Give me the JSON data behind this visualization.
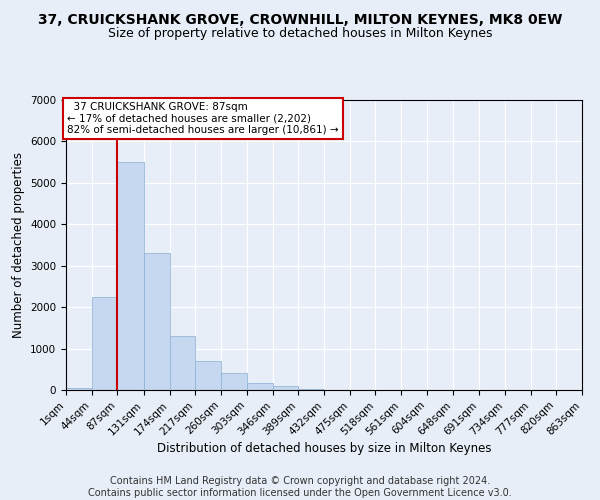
{
  "title": "37, CRUICKSHANK GROVE, CROWNHILL, MILTON KEYNES, MK8 0EW",
  "subtitle": "Size of property relative to detached houses in Milton Keynes",
  "xlabel": "Distribution of detached houses by size in Milton Keynes",
  "ylabel": "Number of detached properties",
  "footer_line1": "Contains HM Land Registry data © Crown copyright and database right 2024.",
  "footer_line2": "Contains public sector information licensed under the Open Government Licence v3.0.",
  "annotation_title": "37 CRUICKSHANK GROVE: 87sqm",
  "annotation_line1": "← 17% of detached houses are smaller (2,202)",
  "annotation_line2": "82% of semi-detached houses are larger (10,861) →",
  "property_size_sqm": 87,
  "bar_edges": [
    1,
    44,
    87,
    131,
    174,
    217,
    260,
    303,
    346,
    389,
    432,
    475,
    518,
    561,
    604,
    648,
    691,
    734,
    777,
    820,
    863
  ],
  "bar_heights": [
    50,
    2250,
    5500,
    3300,
    1300,
    700,
    400,
    175,
    100,
    35,
    8,
    3,
    1,
    0,
    0,
    0,
    0,
    0,
    0,
    0
  ],
  "bar_color": "#c5d8ef",
  "bar_edgecolor": "#8ab0d4",
  "vline_color": "#cc0000",
  "vline_x": 87,
  "annotation_box_edgecolor": "#cc0000",
  "annotation_box_facecolor": "#ffffff",
  "ylim": [
    0,
    7000
  ],
  "yticks": [
    0,
    1000,
    2000,
    3000,
    4000,
    5000,
    6000,
    7000
  ],
  "bg_color": "#e8eef8",
  "plot_bg_color": "#e8eef8",
  "grid_color": "#ffffff",
  "title_fontsize": 10,
  "subtitle_fontsize": 9,
  "xlabel_fontsize": 8.5,
  "ylabel_fontsize": 8.5,
  "tick_fontsize": 7.5,
  "footer_fontsize": 7,
  "annotation_fontsize": 7.5
}
